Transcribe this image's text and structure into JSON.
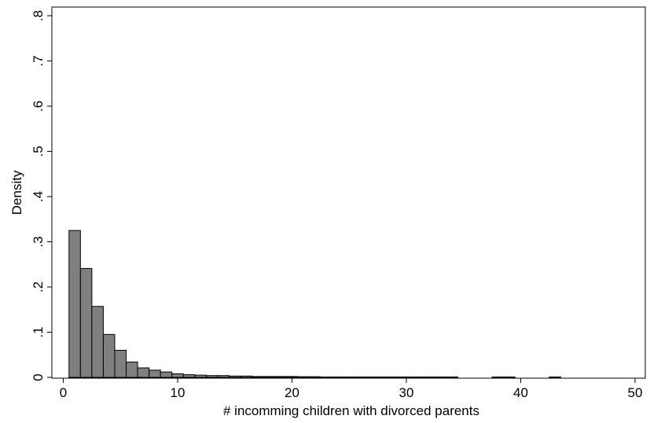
{
  "chart_data": {
    "type": "bar",
    "title": "",
    "xlabel": "# incomming children with divorced parents",
    "ylabel": "Density",
    "xlim": [
      0,
      50
    ],
    "ylim": [
      0,
      0.8
    ],
    "x_ticks": [
      0,
      10,
      20,
      30,
      40,
      50
    ],
    "x_tick_labels": [
      "0",
      "10",
      "20",
      "30",
      "40",
      "50"
    ],
    "y_ticks": [
      0,
      0.1,
      0.2,
      0.3,
      0.4,
      0.5,
      0.6,
      0.7,
      0.8
    ],
    "y_tick_labels": [
      "0",
      ".1",
      ".2",
      ".3",
      ".4",
      ".5",
      ".6",
      ".7",
      ".8"
    ],
    "grid": false,
    "legend": "none",
    "bar_fill": "#7f7f7f",
    "bar_stroke": "#000000",
    "bin_width": 1,
    "bins": [
      {
        "start": 0.5,
        "density": 0.325
      },
      {
        "start": 1.5,
        "density": 0.241
      },
      {
        "start": 2.5,
        "density": 0.157
      },
      {
        "start": 3.5,
        "density": 0.095
      },
      {
        "start": 4.5,
        "density": 0.06
      },
      {
        "start": 5.5,
        "density": 0.034
      },
      {
        "start": 6.5,
        "density": 0.021
      },
      {
        "start": 7.5,
        "density": 0.016
      },
      {
        "start": 8.5,
        "density": 0.012
      },
      {
        "start": 9.5,
        "density": 0.008
      },
      {
        "start": 10.5,
        "density": 0.006
      },
      {
        "start": 11.5,
        "density": 0.005
      },
      {
        "start": 12.5,
        "density": 0.004
      },
      {
        "start": 13.5,
        "density": 0.004
      },
      {
        "start": 14.5,
        "density": 0.003
      },
      {
        "start": 15.5,
        "density": 0.003
      },
      {
        "start": 16.5,
        "density": 0.002
      },
      {
        "start": 17.5,
        "density": 0.002
      },
      {
        "start": 18.5,
        "density": 0.002
      },
      {
        "start": 19.5,
        "density": 0.002
      },
      {
        "start": 20.5,
        "density": 0.0015
      },
      {
        "start": 21.5,
        "density": 0.0015
      },
      {
        "start": 22.5,
        "density": 0.001
      },
      {
        "start": 23.5,
        "density": 0.001
      },
      {
        "start": 24.5,
        "density": 0.001
      },
      {
        "start": 25.5,
        "density": 0.001
      },
      {
        "start": 26.5,
        "density": 0.001
      },
      {
        "start": 27.5,
        "density": 0.001
      },
      {
        "start": 28.5,
        "density": 0.001
      },
      {
        "start": 29.5,
        "density": 0.001
      },
      {
        "start": 30.5,
        "density": 0.001
      },
      {
        "start": 31.5,
        "density": 0.001
      },
      {
        "start": 32.5,
        "density": 0.001
      },
      {
        "start": 33.5,
        "density": 0.001
      },
      {
        "start": 37.5,
        "density": 0.001
      },
      {
        "start": 38.5,
        "density": 0.001
      },
      {
        "start": 42.5,
        "density": 0.001
      }
    ]
  }
}
